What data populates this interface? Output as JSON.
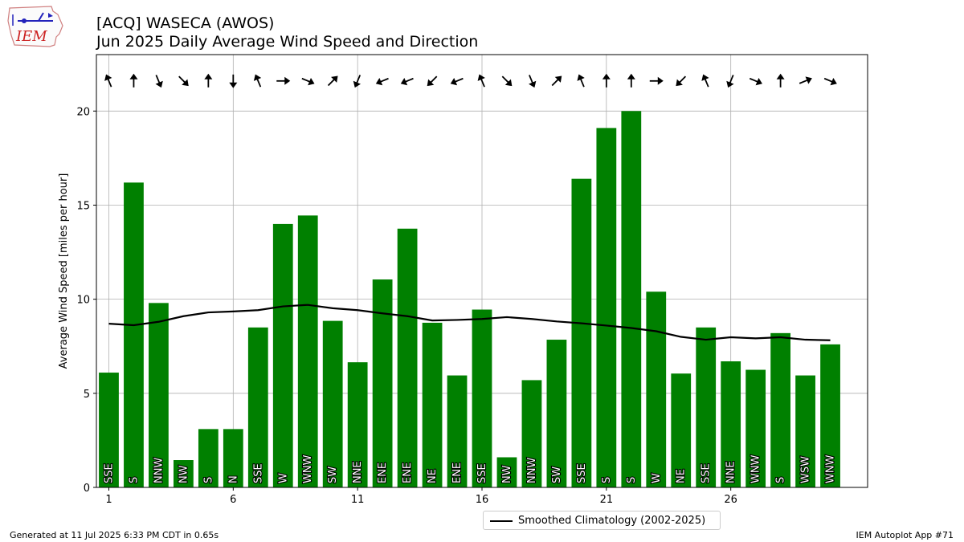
{
  "header": {
    "title_line1": "[ACQ] WASECA (AWOS)",
    "title_line2": "Jun 2025 Daily Average Wind Speed and Direction"
  },
  "logo": {
    "text": "IEM",
    "icon": "iem-iowa-logo-icon"
  },
  "footer": {
    "left": "Generated at 11 Jul 2025 6:33 PM CDT in 0.65s",
    "right": "IEM Autoplot App #71"
  },
  "colors": {
    "bar": "#008000",
    "line": "#000000",
    "grid": "#b0b0b0"
  },
  "chart_data": {
    "type": "bar",
    "ylabel": "Average Wind Speed [miles per hour]",
    "xlabel": "",
    "ylim": [
      0,
      23
    ],
    "xlim": [
      0.5,
      31.5
    ],
    "xticks": [
      1,
      6,
      11,
      16,
      21,
      26
    ],
    "yticks": [
      0,
      5,
      10,
      15,
      20
    ],
    "grid": true,
    "legend_position": "bottom-center",
    "days": [
      1,
      2,
      3,
      4,
      5,
      6,
      7,
      8,
      9,
      10,
      11,
      12,
      13,
      14,
      15,
      16,
      17,
      18,
      19,
      20,
      21,
      22,
      23,
      24,
      25,
      26,
      27,
      28,
      29,
      30
    ],
    "values": [
      6.1,
      16.2,
      9.8,
      1.45,
      3.1,
      3.1,
      8.5,
      14.0,
      14.45,
      8.85,
      6.65,
      11.05,
      13.75,
      8.75,
      5.95,
      9.45,
      1.6,
      5.7,
      7.85,
      16.4,
      19.1,
      20.0,
      10.4,
      6.05,
      8.5,
      6.7,
      6.25,
      8.2,
      5.95,
      7.6
    ],
    "directions": [
      "SSE",
      "S",
      "NNW",
      "NW",
      "S",
      "N",
      "SSE",
      "W",
      "WNW",
      "SW",
      "NNE",
      "ENE",
      "ENE",
      "NE",
      "ENE",
      "SSE",
      "NW",
      "NNW",
      "SW",
      "SSE",
      "S",
      "S",
      "W",
      "NE",
      "SSE",
      "NNE",
      "WNW",
      "S",
      "WSW",
      "WNW"
    ],
    "series": [
      {
        "name": "Smoothed Climatology (2002-2025)",
        "type": "line",
        "values": [
          8.7,
          8.62,
          8.8,
          9.1,
          9.3,
          9.35,
          9.42,
          9.62,
          9.7,
          9.52,
          9.42,
          9.25,
          9.1,
          8.87,
          8.9,
          8.95,
          9.05,
          8.95,
          8.82,
          8.72,
          8.6,
          8.47,
          8.3,
          8.0,
          7.85,
          7.98,
          7.92,
          7.98,
          7.85,
          7.82
        ]
      }
    ]
  }
}
